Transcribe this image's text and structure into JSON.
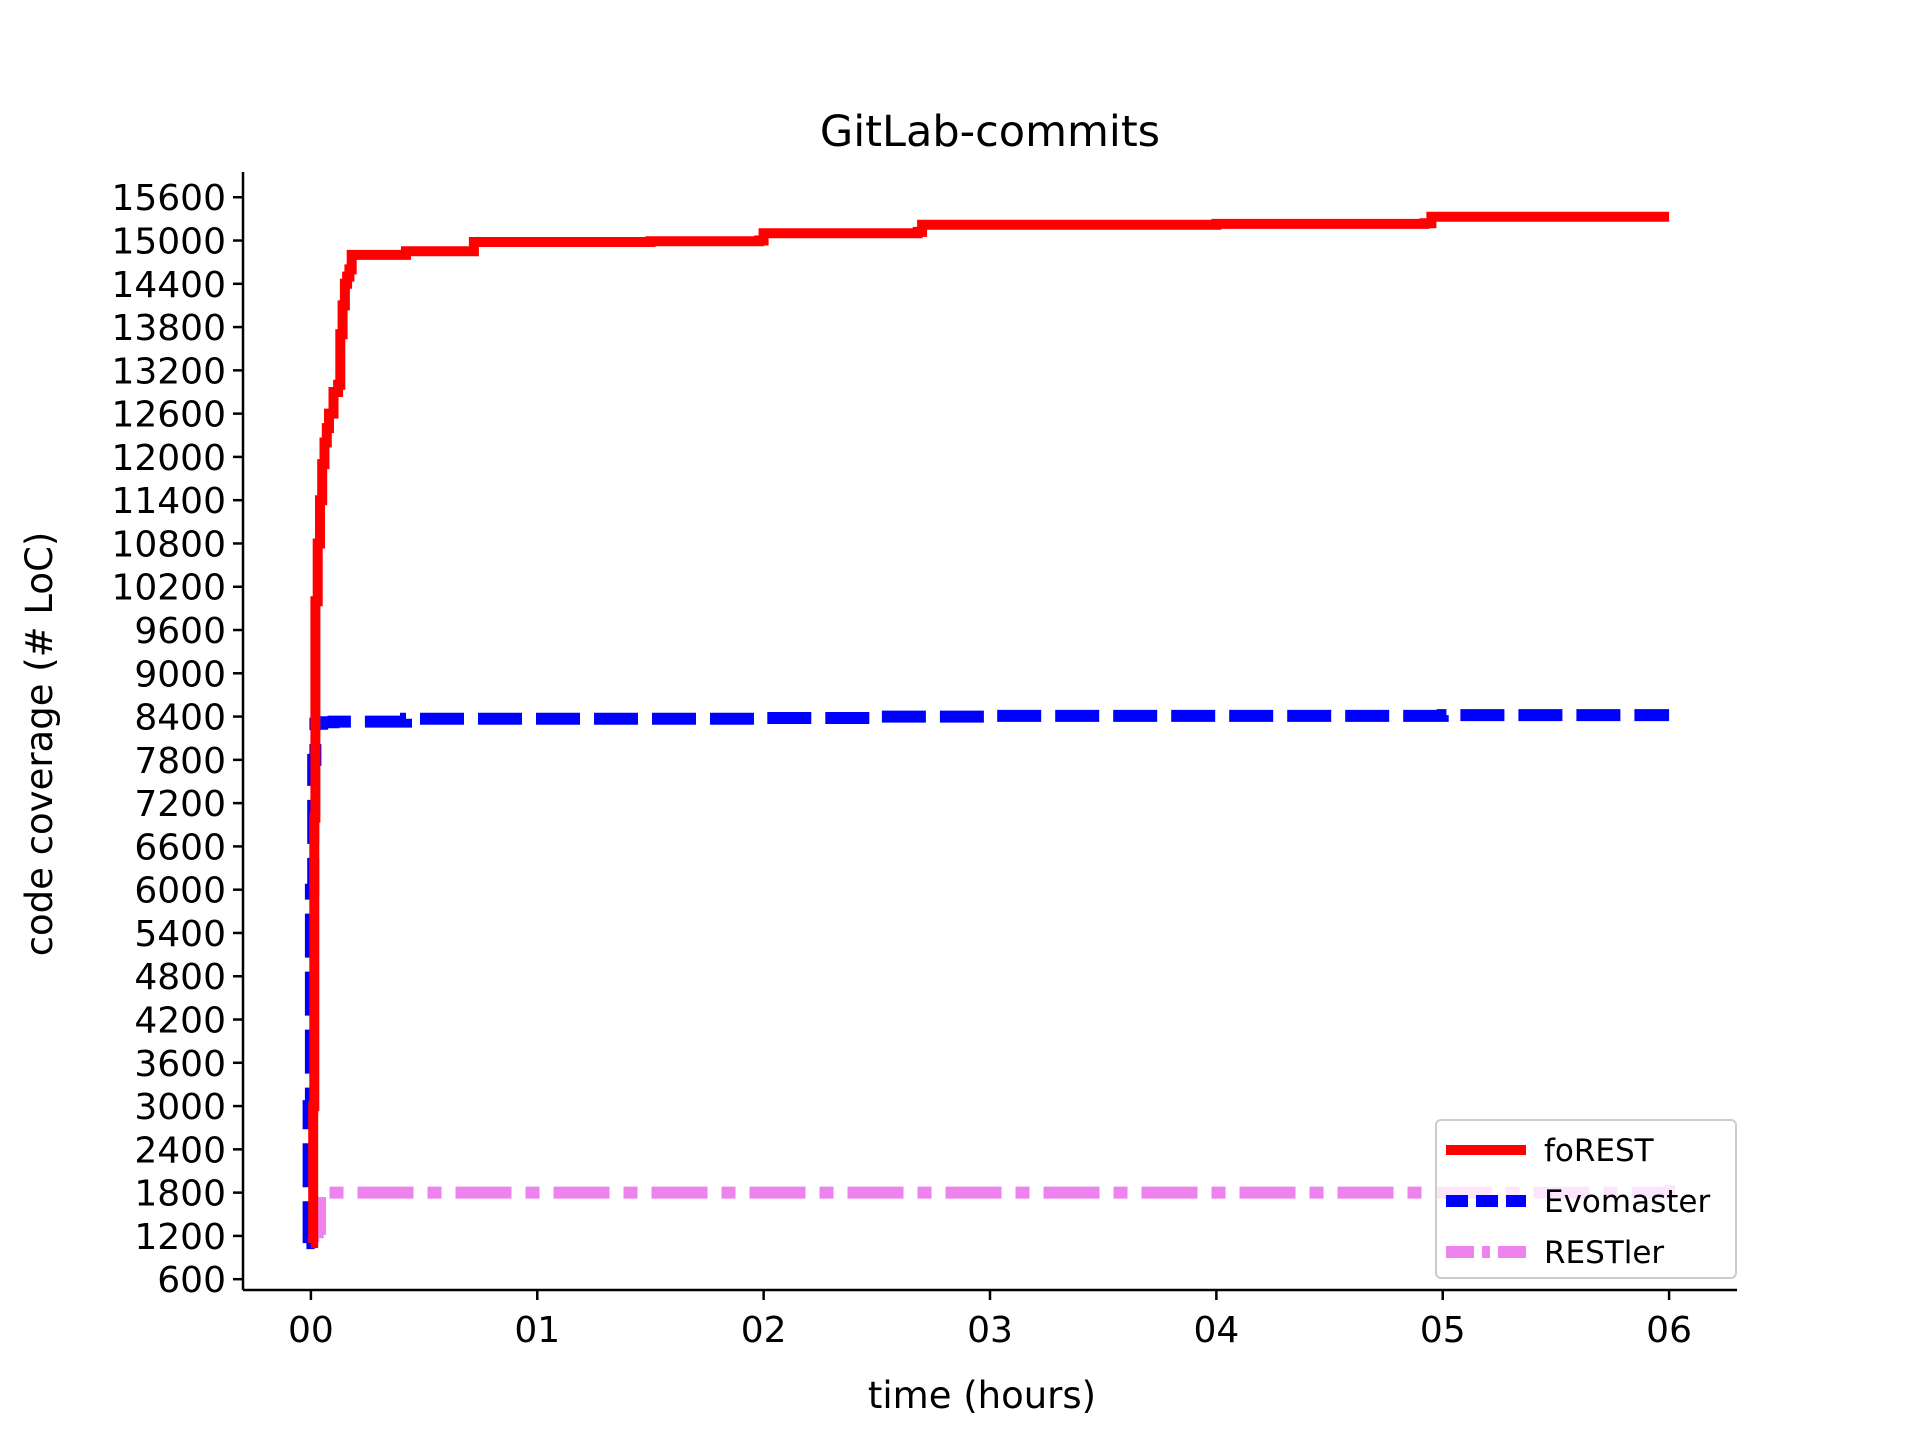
{
  "chart_data": {
    "type": "line",
    "title": "GitLab-commits",
    "xlabel": "time (hours)",
    "ylabel": "code coverage (# LoC)",
    "xlim": [
      -0.3,
      6.3
    ],
    "ylim": [
      450,
      15950
    ],
    "x_ticks": [
      0,
      1,
      2,
      3,
      4,
      5,
      6
    ],
    "x_tick_labels": [
      "00",
      "01",
      "02",
      "03",
      "04",
      "05",
      "06"
    ],
    "y_ticks": [
      600,
      1200,
      1800,
      2400,
      3000,
      3600,
      4200,
      4800,
      5400,
      6000,
      6600,
      7200,
      7800,
      8400,
      9000,
      9600,
      10200,
      10800,
      11400,
      12000,
      12600,
      13200,
      13800,
      14400,
      15000,
      15600
    ],
    "y_tick_labels": [
      "600",
      "1200",
      "1800",
      "2400",
      "3000",
      "3600",
      "4200",
      "4800",
      "5400",
      "6000",
      "6600",
      "7200",
      "7800",
      "8400",
      "9000",
      "9600",
      "10200",
      "10800",
      "11400",
      "12000",
      "12600",
      "13200",
      "13800",
      "14400",
      "15000",
      "15600"
    ],
    "grid": false,
    "legend_position": "bottom-right",
    "series": [
      {
        "name": "foREST",
        "color": "#ff0000",
        "style": "solid",
        "x": [
          0,
          0.01,
          0.015,
          0.02,
          0.03,
          0.04,
          0.05,
          0.06,
          0.07,
          0.08,
          0.1,
          0.12,
          0.13,
          0.14,
          0.15,
          0.16,
          0.17,
          0.18,
          0.2,
          0.3,
          0.4,
          0.42,
          0.5,
          0.7,
          0.72,
          1.0,
          1.5,
          1.98,
          2.0,
          2.5,
          2.68,
          2.7,
          3.0,
          4.0,
          4.92,
          4.95,
          5.5,
          6.0
        ],
        "y": [
          1100,
          3000,
          7000,
          10000,
          10800,
          11400,
          11900,
          12200,
          12400,
          12600,
          12900,
          13000,
          13700,
          14100,
          14400,
          14500,
          14600,
          14800,
          14800,
          14800,
          14800,
          14850,
          14850,
          14850,
          14980,
          14980,
          14990,
          15000,
          15100,
          15100,
          15120,
          15220,
          15220,
          15230,
          15240,
          15330,
          15330,
          15330
        ]
      },
      {
        "name": "Evomaster",
        "color": "#0000ff",
        "style": "dashed",
        "x": [
          -0.02,
          -0.01,
          0,
          0.01,
          0.02,
          0.05,
          0.1,
          0.2,
          0.4,
          0.42,
          1.0,
          2.0,
          2.5,
          3.0,
          4.0,
          5.0,
          6.0
        ],
        "y": [
          1100,
          3000,
          6000,
          7800,
          8300,
          8320,
          8330,
          8330,
          8330,
          8370,
          8370,
          8380,
          8400,
          8410,
          8410,
          8420,
          8420
        ]
      },
      {
        "name": "RESTler",
        "color": "#ee82ee",
        "style": "dashdot",
        "x": [
          -0.02,
          0,
          0.01,
          0.03,
          0.04,
          0.05,
          0.1,
          1.0,
          2.0,
          3.0,
          4.0,
          5.0,
          5.97,
          6.0
        ],
        "y": [
          1150,
          1200,
          1250,
          1300,
          1800,
          1800,
          1800,
          1800,
          1800,
          1800,
          1800,
          1800,
          1800,
          1900
        ]
      }
    ]
  }
}
